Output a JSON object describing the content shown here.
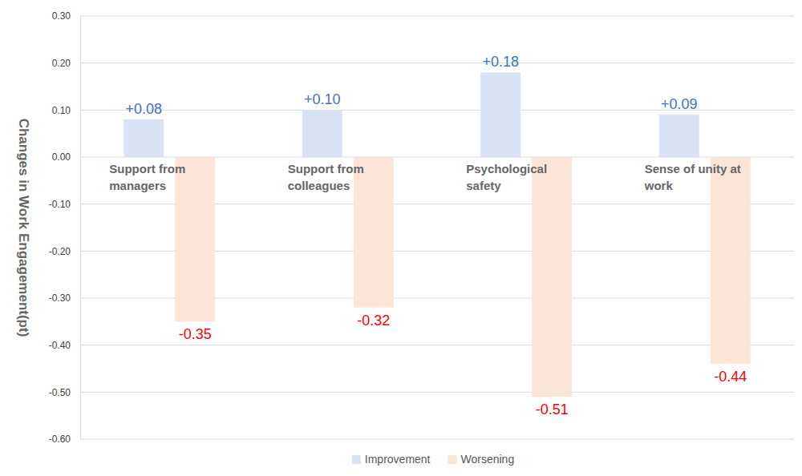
{
  "chart_data": {
    "type": "bar",
    "y_label": "Changes in Work Engagement(pt)",
    "categories": [
      "Support from managers",
      "Support from colleagues",
      "Psychological safety",
      "Sense of unity at work"
    ],
    "series": [
      {
        "name": "Improvement",
        "color": "#dae3f3",
        "values": [
          0.08,
          0.1,
          0.18,
          0.09
        ],
        "value_labels": [
          "+0.08",
          "+0.10",
          "+0.18",
          "+0.09"
        ]
      },
      {
        "name": "Worsening",
        "color": "#fbe5d6",
        "values": [
          -0.35,
          -0.32,
          -0.51,
          -0.44
        ],
        "value_labels": [
          "-0.35",
          "-0.32",
          "-0.51",
          "-0.44"
        ]
      }
    ],
    "ylim": [
      -0.6,
      0.3
    ],
    "yticks": [
      {
        "value": -0.6,
        "label": "-0.60"
      },
      {
        "value": -0.5,
        "label": "-0.50"
      },
      {
        "value": -0.4,
        "label": "-0.40"
      },
      {
        "value": -0.3,
        "label": "-0.30"
      },
      {
        "value": -0.2,
        "label": "-0.20"
      },
      {
        "value": -0.1,
        "label": "-0.10"
      },
      {
        "value": 0,
        "label": "0.00"
      },
      {
        "value": 0.1,
        "label": "0.10"
      },
      {
        "value": 0.2,
        "label": "0.20"
      },
      {
        "value": 0.3,
        "label": "0.30"
      }
    ],
    "grid": true,
    "legend": "bottom",
    "data_labels": true
  }
}
